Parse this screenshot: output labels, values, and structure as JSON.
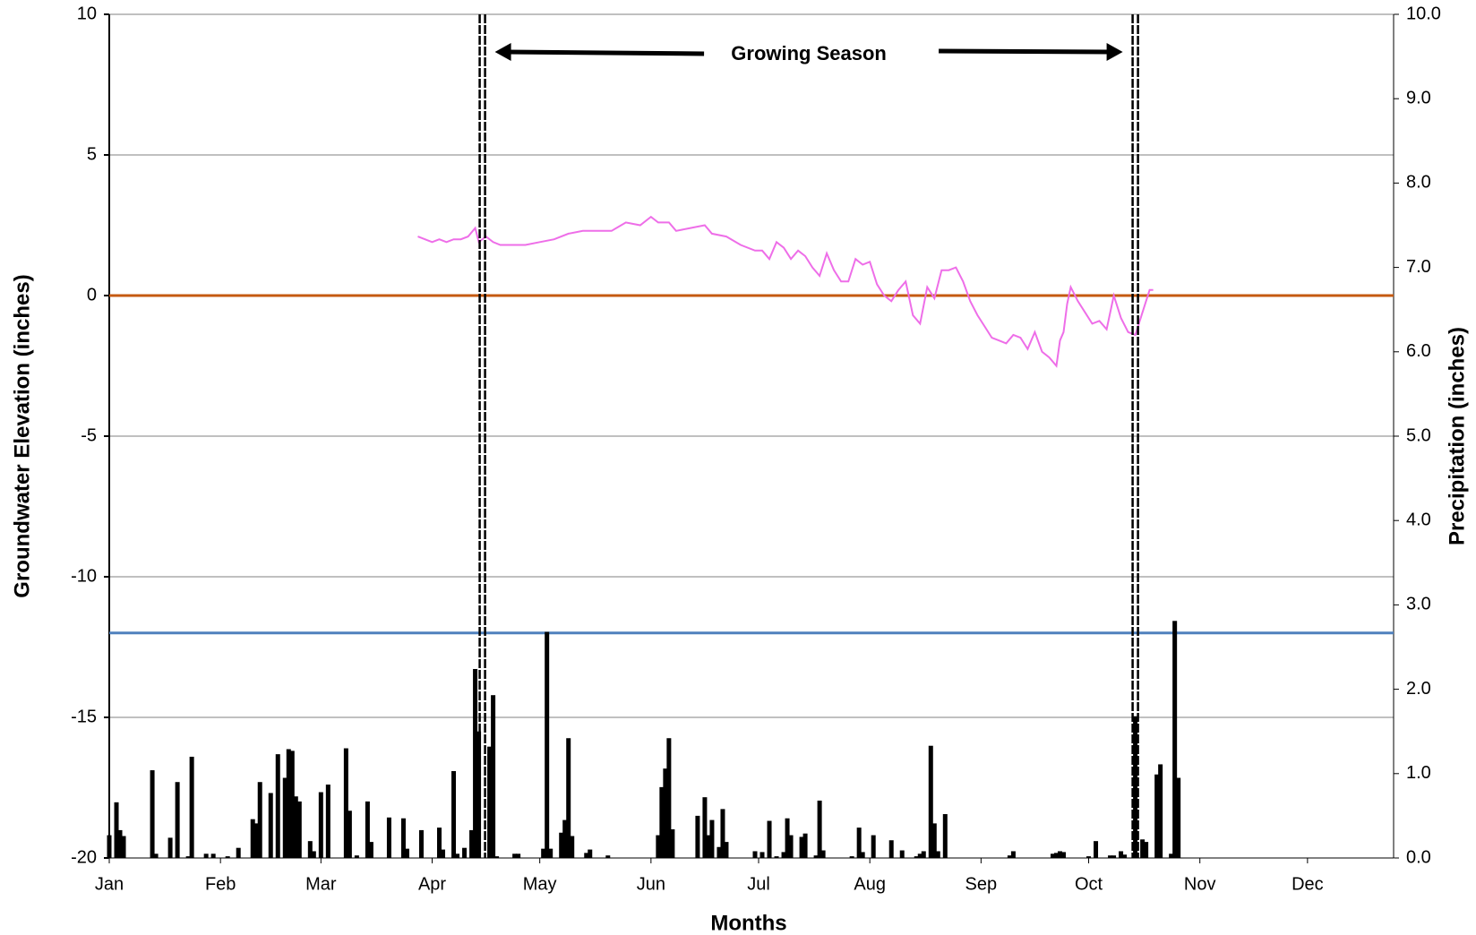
{
  "chart_data": {
    "type": "line",
    "x_label": "Months",
    "y_label": "Groundwater Elevation (inches)",
    "y2_label": "Precipitation (inches)",
    "annotation": "Growing Season",
    "xlim": [
      0,
      358
    ],
    "xticks": [
      {
        "value": 0,
        "label": "Jan"
      },
      {
        "value": 31,
        "label": "Feb"
      },
      {
        "value": 59,
        "label": "Mar"
      },
      {
        "value": 90,
        "label": "Apr"
      },
      {
        "value": 120,
        "label": "May"
      },
      {
        "value": 151,
        "label": "Jun"
      },
      {
        "value": 181,
        "label": "Jul"
      },
      {
        "value": 212,
        "label": "Aug"
      },
      {
        "value": 243,
        "label": "Sep"
      },
      {
        "value": 273,
        "label": "Oct"
      },
      {
        "value": 304,
        "label": "Nov"
      },
      {
        "value": 334,
        "label": "Dec"
      }
    ],
    "ylim": [
      -20,
      10
    ],
    "yticks": [
      -20,
      -15,
      -10,
      -5,
      0,
      5,
      10
    ],
    "y2lim": [
      0,
      10
    ],
    "y2ticks": [
      {
        "value": 0,
        "label": "0.0"
      },
      {
        "value": 1,
        "label": "1.0"
      },
      {
        "value": 2,
        "label": "2.0"
      },
      {
        "value": 3,
        "label": "3.0"
      },
      {
        "value": 4,
        "label": "4.0"
      },
      {
        "value": 5,
        "label": "5.0"
      },
      {
        "value": 6,
        "label": "6.0"
      },
      {
        "value": 7,
        "label": "7.0"
      },
      {
        "value": 8,
        "label": "8.0"
      },
      {
        "value": 9,
        "label": "9.0"
      },
      {
        "value": 10,
        "label": "10.0"
      }
    ],
    "grid": true,
    "reference_lines": [
      {
        "value": 0,
        "color": "#c55a11"
      },
      {
        "value": -12,
        "color": "#4f81bd"
      }
    ],
    "growing_season": [
      104,
      286
    ],
    "series": [
      {
        "type": "line",
        "color": "#ee6ee8",
        "x": [
          86,
          88,
          90,
          92,
          94,
          96,
          98,
          100,
          102,
          103,
          105,
          107,
          109,
          112,
          116,
          120,
          124,
          128,
          132,
          136,
          140,
          144,
          148,
          151,
          153,
          156,
          158,
          162,
          166,
          168,
          172,
          176,
          180,
          182,
          184,
          186,
          188,
          190,
          192,
          194,
          196,
          198,
          200,
          202,
          204,
          206,
          208,
          210,
          212,
          214,
          216,
          218,
          220,
          222,
          224,
          226,
          228,
          230,
          232,
          234,
          236,
          238,
          240,
          242,
          244,
          246,
          248,
          250,
          252,
          254,
          256,
          258,
          260,
          262,
          264,
          265,
          266,
          267,
          268,
          270,
          272,
          274,
          276,
          278,
          280,
          282,
          284,
          286,
          288,
          290,
          291
        ],
        "values": [
          2.1,
          2.0,
          1.9,
          2.0,
          1.9,
          2.0,
          2.0,
          2.1,
          2.4,
          1.9,
          2.1,
          1.9,
          1.8,
          1.8,
          1.8,
          1.9,
          2.0,
          2.2,
          2.3,
          2.3,
          2.3,
          2.6,
          2.5,
          2.8,
          2.6,
          2.6,
          2.3,
          2.4,
          2.5,
          2.2,
          2.1,
          1.8,
          1.6,
          1.6,
          1.3,
          1.9,
          1.7,
          1.3,
          1.6,
          1.4,
          1.0,
          0.7,
          1.5,
          0.9,
          0.5,
          0.5,
          1.3,
          1.1,
          1.2,
          0.4,
          0.0,
          -0.2,
          0.2,
          0.5,
          -0.7,
          -1.0,
          0.3,
          -0.1,
          0.9,
          0.9,
          1.0,
          0.5,
          -0.2,
          -0.7,
          -1.1,
          -1.5,
          -1.6,
          -1.7,
          -1.4,
          -1.5,
          -1.9,
          -1.3,
          -2.0,
          -2.2,
          -2.5,
          -1.6,
          -1.3,
          -0.3,
          0.3,
          -0.2,
          -0.6,
          -1.0,
          -0.9,
          -1.2,
          0.0,
          -0.8,
          -1.3,
          -1.4,
          -0.6,
          0.2,
          0.2
        ]
      },
      {
        "type": "bar",
        "axis": "y2",
        "color": "#000000",
        "x": [
          0,
          2,
          3,
          4,
          12,
          13,
          17,
          19,
          22,
          23,
          27,
          29,
          33,
          36,
          40,
          41,
          42,
          45,
          47,
          49,
          50,
          51,
          52,
          53,
          56,
          57,
          59,
          61,
          66,
          67,
          69,
          72,
          73,
          78,
          82,
          83,
          87,
          92,
          93,
          96,
          97,
          99,
          101,
          102,
          103,
          106,
          107,
          108,
          113,
          114,
          121,
          122,
          123,
          126,
          127,
          128,
          129,
          133,
          134,
          139,
          153,
          154,
          155,
          156,
          157,
          164,
          166,
          167,
          168,
          170,
          171,
          172,
          180,
          182,
          184,
          186,
          188,
          189,
          190,
          193,
          194,
          197,
          198,
          199,
          207,
          209,
          210,
          213,
          218,
          221,
          225,
          226,
          227,
          229,
          230,
          231,
          233,
          251,
          252,
          263,
          264,
          265,
          266,
          273,
          275,
          279,
          280,
          282,
          283,
          286,
          288,
          289,
          292,
          293,
          296,
          297,
          298
        ],
        "values": [
          0.27,
          0.66,
          0.33,
          0.26,
          1.04,
          0.05,
          0.24,
          0.9,
          0.02,
          1.2,
          0.05,
          0.05,
          0.02,
          0.12,
          0.46,
          0.41,
          0.9,
          0.77,
          1.23,
          0.95,
          1.29,
          1.27,
          0.73,
          0.67,
          0.2,
          0.08,
          0.78,
          0.87,
          1.3,
          0.56,
          0.03,
          0.67,
          0.19,
          0.48,
          0.47,
          0.11,
          0.33,
          0.36,
          0.1,
          1.03,
          0.05,
          0.12,
          0.33,
          2.24,
          1.5,
          1.32,
          1.93,
          0.02,
          0.05,
          0.05,
          0.11,
          2.68,
          0.11,
          0.3,
          0.45,
          1.42,
          0.26,
          0.06,
          0.1,
          0.03,
          0.27,
          0.84,
          1.06,
          1.42,
          0.34,
          0.5,
          0.72,
          0.27,
          0.45,
          0.13,
          0.58,
          0.19,
          0.08,
          0.07,
          0.44,
          0.02,
          0.07,
          0.47,
          0.27,
          0.25,
          0.29,
          0.03,
          0.68,
          0.09,
          0.02,
          0.36,
          0.07,
          0.27,
          0.21,
          0.09,
          0.02,
          0.05,
          0.08,
          1.33,
          0.41,
          0.08,
          0.52,
          0.03,
          0.08,
          0.05,
          0.06,
          0.08,
          0.07,
          0.02,
          0.2,
          0.03,
          0.03,
          0.08,
          0.04,
          1.68,
          0.22,
          0.19,
          0.99,
          1.11,
          0.05,
          2.81,
          0.95
        ]
      }
    ]
  }
}
